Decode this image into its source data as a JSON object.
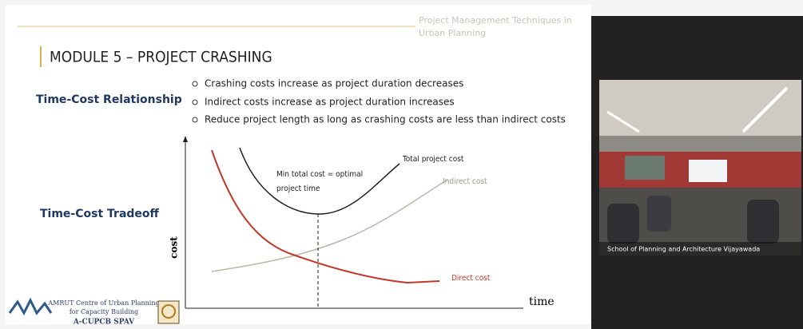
{
  "slide": {
    "header": [
      "Project Management Techniques in",
      "Urban Planning"
    ],
    "title": "MODULE 5 – PROJECT CRASHING",
    "section1": "Time-Cost Relationship",
    "bullets": [
      "Crashing costs increase as project duration decreases",
      "Indirect costs increase as project duration increases",
      "Reduce project length as long as crashing costs are less than indirect costs"
    ],
    "section2": "Time-Cost Tradeoff",
    "diagram": {
      "y_label": "cost",
      "x_label": "time",
      "total": "Total project cost",
      "indirect": "Indirect cost",
      "direct": "Direct cost",
      "note": [
        "Min total cost = optimal",
        "project time"
      ]
    },
    "footer": [
      "AMRUT Centre of Urban Planning",
      "for Capacity Building",
      "A-CUPCB SPAV"
    ]
  },
  "video": {
    "caption": "School of Planning and Architecture Vijayawada"
  }
}
